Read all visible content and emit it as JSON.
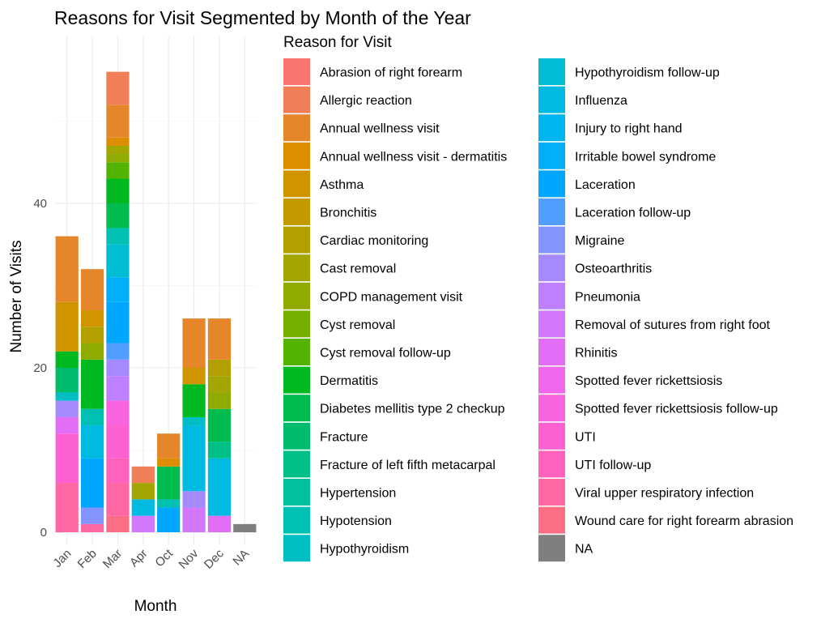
{
  "chart_data": {
    "type": "bar",
    "stacked": true,
    "title": "Reasons for Visit Segmented by Month of the Year",
    "xlabel": "Month",
    "ylabel": "Number of Visits",
    "ylim": [
      0,
      57
    ],
    "yticks": [
      0,
      20,
      40
    ],
    "grid": true,
    "legend_title": "Reason for Visit",
    "legend_position": "right",
    "categories": [
      "Jan",
      "Feb",
      "Mar",
      "Apr",
      "Oct",
      "Nov",
      "Dec",
      "NA"
    ],
    "series": [
      {
        "name": "Abrasion of right forearm",
        "color": "#F8766D",
        "values": [
          0,
          0,
          0,
          0,
          0,
          0,
          0,
          0
        ]
      },
      {
        "name": "Allergic reaction",
        "color": "#F07E56",
        "values": [
          0,
          0,
          4,
          2,
          0,
          0,
          0,
          0
        ]
      },
      {
        "name": "Annual wellness visit",
        "color": "#E6862A",
        "values": [
          8,
          5,
          4,
          0,
          3,
          6,
          5,
          0
        ]
      },
      {
        "name": "Annual wellness visit - dermatitis",
        "color": "#DB8E00",
        "values": [
          0,
          0,
          1,
          0,
          1,
          0,
          0,
          0
        ]
      },
      {
        "name": "Asthma",
        "color": "#CF9400",
        "values": [
          6,
          2,
          0,
          0,
          0,
          2,
          0,
          0
        ]
      },
      {
        "name": "Bronchitis",
        "color": "#C29A00",
        "values": [
          0,
          0,
          0,
          0,
          0,
          0,
          0,
          0
        ]
      },
      {
        "name": "Cardiac monitoring",
        "color": "#B3A000",
        "values": [
          0,
          2,
          0,
          0,
          0,
          0,
          2,
          0
        ]
      },
      {
        "name": "Cast removal",
        "color": "#A3A500",
        "values": [
          0,
          0,
          1,
          2,
          0,
          0,
          2,
          0
        ]
      },
      {
        "name": "COPD management visit",
        "color": "#8FAA00",
        "values": [
          0,
          2,
          1,
          0,
          0,
          0,
          2,
          0
        ]
      },
      {
        "name": "Cyst removal",
        "color": "#76AF00",
        "values": [
          0,
          0,
          0,
          0,
          0,
          0,
          0,
          0
        ]
      },
      {
        "name": "Cyst removal follow-up",
        "color": "#52B400",
        "values": [
          0,
          0,
          2,
          0,
          0,
          0,
          0,
          0
        ]
      },
      {
        "name": "Dermatitis",
        "color": "#00B81F",
        "values": [
          2,
          6,
          3,
          0,
          0,
          4,
          0,
          0
        ]
      },
      {
        "name": "Diabetes mellitis type 2 checkup",
        "color": "#00BB4E",
        "values": [
          0,
          0,
          3,
          0,
          4,
          0,
          4,
          0
        ]
      },
      {
        "name": "Fracture",
        "color": "#00BD6D",
        "values": [
          3,
          0,
          0,
          0,
          0,
          0,
          0,
          0
        ]
      },
      {
        "name": "Fracture of left fifth metacarpal",
        "color": "#00BF87",
        "values": [
          0,
          0,
          0,
          0,
          0,
          0,
          2,
          0
        ]
      },
      {
        "name": "Hypertension",
        "color": "#00C09E",
        "values": [
          0,
          0,
          0,
          0,
          0,
          0,
          0,
          0
        ]
      },
      {
        "name": "Hypotension",
        "color": "#00C0B3",
        "values": [
          0,
          2,
          2,
          0,
          1,
          0,
          0,
          0
        ]
      },
      {
        "name": "Hypothyroidism",
        "color": "#00BFC4",
        "values": [
          1,
          0,
          0,
          0,
          0,
          1,
          0,
          0
        ]
      },
      {
        "name": "Hypothyroidism follow-up",
        "color": "#00BDD4",
        "values": [
          0,
          0,
          4,
          0,
          0,
          0,
          0,
          0
        ]
      },
      {
        "name": "Influenza",
        "color": "#00BAE2",
        "values": [
          0,
          4,
          0,
          2,
          0,
          8,
          7,
          0
        ]
      },
      {
        "name": "Injury to right hand",
        "color": "#00B5EF",
        "values": [
          0,
          0,
          0,
          0,
          0,
          0,
          0,
          0
        ]
      },
      {
        "name": "Irritable bowel syndrome",
        "color": "#00AFF8",
        "values": [
          0,
          0,
          3,
          0,
          0,
          0,
          0,
          0
        ]
      },
      {
        "name": "Laceration",
        "color": "#00A7FF",
        "values": [
          0,
          6,
          5,
          0,
          3,
          0,
          0,
          0
        ]
      },
      {
        "name": "Laceration follow-up",
        "color": "#529EFF",
        "values": [
          0,
          0,
          2,
          0,
          0,
          0,
          0,
          0
        ]
      },
      {
        "name": "Migraine",
        "color": "#8494FF",
        "values": [
          0,
          2,
          0,
          0,
          0,
          0,
          0,
          0
        ]
      },
      {
        "name": "Osteoarthritis",
        "color": "#A58AFF",
        "values": [
          2,
          0,
          2,
          0,
          0,
          2,
          0,
          0
        ]
      },
      {
        "name": "Pneumonia",
        "color": "#BF80FF",
        "values": [
          0,
          0,
          3,
          0,
          0,
          0,
          0,
          0
        ]
      },
      {
        "name": "Removal of sutures from right foot",
        "color": "#D377FF",
        "values": [
          0,
          0,
          0,
          2,
          0,
          3,
          0,
          0
        ]
      },
      {
        "name": "Rhinitis",
        "color": "#E36EF6",
        "values": [
          2,
          0,
          0,
          0,
          0,
          0,
          2,
          0
        ]
      },
      {
        "name": "Spotted fever rickettsiosis",
        "color": "#EF67EB",
        "values": [
          0,
          0,
          0,
          0,
          0,
          0,
          0,
          0
        ]
      },
      {
        "name": "Spotted fever rickettsiosis follow-up",
        "color": "#F863DF",
        "values": [
          0,
          0,
          3,
          0,
          0,
          0,
          0,
          0
        ]
      },
      {
        "name": "UTI",
        "color": "#FD61D1",
        "values": [
          6,
          0,
          4,
          0,
          0,
          0,
          0,
          0
        ]
      },
      {
        "name": "UTI follow-up",
        "color": "#FF62BC",
        "values": [
          0,
          0,
          3,
          0,
          0,
          0,
          0,
          0
        ]
      },
      {
        "name": "Viral upper respiratory infection",
        "color": "#FF67A4",
        "values": [
          6,
          1,
          4,
          0,
          0,
          0,
          0,
          0
        ]
      },
      {
        "name": "Wound care for right forearm abrasion",
        "color": "#FC6E85",
        "values": [
          0,
          0,
          2,
          0,
          0,
          0,
          0,
          0
        ]
      },
      {
        "name": "NA",
        "color": "#7F7F7F",
        "values": [
          0,
          0,
          0,
          0,
          0,
          0,
          0,
          1
        ]
      }
    ]
  }
}
